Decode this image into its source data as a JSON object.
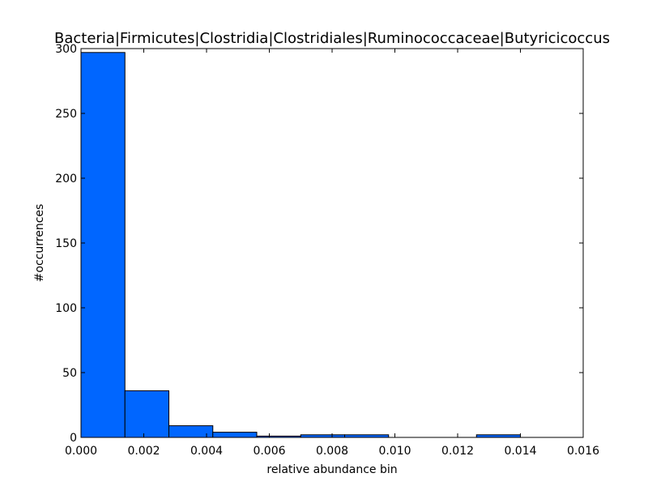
{
  "chart_data": {
    "type": "bar",
    "title": "Bacteria|Firmicutes|Clostridia|Clostridiales|Ruminococcaceae|Butyricicoccus",
    "xlabel": "relative abundance bin",
    "ylabel": "#occurrences",
    "xlim": [
      0.0,
      0.016
    ],
    "ylim": [
      0,
      300
    ],
    "xticks": [
      "0.000",
      "0.002",
      "0.004",
      "0.006",
      "0.008",
      "0.010",
      "0.012",
      "0.014",
      "0.016"
    ],
    "yticks": [
      "0",
      "50",
      "100",
      "150",
      "200",
      "250",
      "300"
    ],
    "bar_color": "#0066ff",
    "bins": [
      {
        "start": 0.0,
        "end": 0.0014,
        "value": 297
      },
      {
        "start": 0.0014,
        "end": 0.0028,
        "value": 36
      },
      {
        "start": 0.0028,
        "end": 0.0042,
        "value": 9
      },
      {
        "start": 0.0042,
        "end": 0.0056,
        "value": 4
      },
      {
        "start": 0.0056,
        "end": 0.007,
        "value": 1
      },
      {
        "start": 0.007,
        "end": 0.0084,
        "value": 2
      },
      {
        "start": 0.0084,
        "end": 0.0098,
        "value": 2
      },
      {
        "start": 0.0098,
        "end": 0.0112,
        "value": 0
      },
      {
        "start": 0.0112,
        "end": 0.0126,
        "value": 0
      },
      {
        "start": 0.0126,
        "end": 0.014,
        "value": 2
      }
    ]
  }
}
